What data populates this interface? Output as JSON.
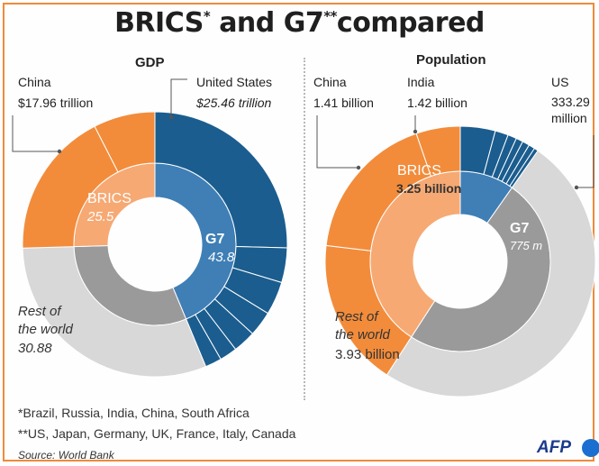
{
  "header": {
    "title_part1": "BRICS",
    "title_part2": "and G7",
    "title_part3": "compared",
    "mark_single": "*",
    "mark_double": "**"
  },
  "colors": {
    "brics_outer": "#f28c3b",
    "brics_inner": "#f6a973",
    "g7_outer": "#1b5d8f",
    "g7_inner": "#3f7fb6",
    "rest_outer": "#d8d8d8",
    "rest_inner": "#9a9a9a",
    "separator": "#ffffff",
    "leader": "#555555"
  },
  "chart_data": [
    {
      "type": "pie",
      "title": "GDP",
      "groups": [
        {
          "name": "BRICS",
          "label": "BRICS",
          "value_label": "25.5",
          "value": 25.5
        },
        {
          "name": "G7",
          "label": "G7",
          "value_label": "43.8",
          "value": 43.8
        },
        {
          "name": "Rest of the world",
          "label": "Rest of\nthe world",
          "value_label": "30.88",
          "value": 30.88
        }
      ],
      "g7_members": [
        25.46,
        4.23,
        4.07,
        3.07,
        2.78,
        2.14,
        2.01
      ],
      "brics_members": [
        17.96,
        7.54
      ],
      "callouts": [
        {
          "name": "China",
          "value": "$17.96 trillion"
        },
        {
          "name": "United States",
          "value": "$25.46 trillion"
        }
      ]
    },
    {
      "type": "pie",
      "title": "Population",
      "groups": [
        {
          "name": "BRICS",
          "label": "BRICS",
          "value_label": "3.25 billion",
          "value": 3.25
        },
        {
          "name": "G7",
          "label": "G7",
          "value_label": "775 m",
          "value": 0.775
        },
        {
          "name": "Rest of the world",
          "label": "Rest of\nthe world",
          "value_label": "3.93 billion",
          "value": 3.93
        }
      ],
      "g7_members": [
        0.333,
        0.125,
        0.084,
        0.067,
        0.068,
        0.059,
        0.039
      ],
      "brics_members": [
        1.41,
        1.42,
        0.42
      ],
      "callouts": [
        {
          "name": "China",
          "value": "1.41 billion"
        },
        {
          "name": "India",
          "value": "1.42 billion"
        },
        {
          "name": "US",
          "value": "333.29\nmillion"
        }
      ]
    }
  ],
  "footnotes": {
    "brics": "*Brazil, Russia, India, China, South Africa",
    "g7": "**US, Japan, Germany, UK, France, Italy, Canada",
    "source": "Source: World Bank",
    "credit": "AFP"
  }
}
